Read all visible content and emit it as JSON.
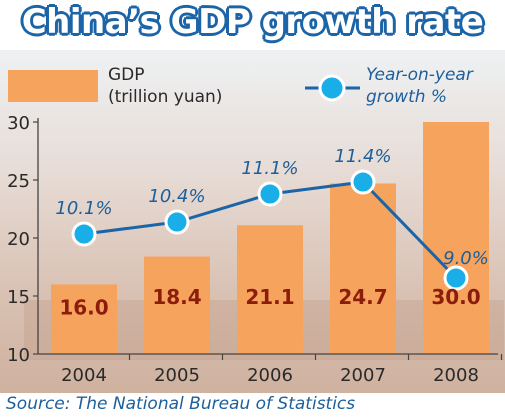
{
  "title": "China’s GDP growth rate",
  "source": "Source: The National Bureau of Statistics",
  "colors": {
    "bar": "#f6a35e",
    "bar_label": "#8c1c0c",
    "line": "#1c64a8",
    "marker": "#1aaee8",
    "title_outline": "#1c64a8",
    "pct_label": "#1d5f9a"
  },
  "legend": {
    "bar_label_line1": "GDP",
    "bar_label_line2": "(trillion yuan)",
    "line_label_line1": "Year-on-year",
    "line_label_line2": "growth %"
  },
  "chart_data": {
    "type": "bar",
    "title": "China’s GDP growth rate",
    "categories": [
      "2004",
      "2005",
      "2006",
      "2007",
      "2008"
    ],
    "series": [
      {
        "name": "GDP (trillion yuan)",
        "type": "bar",
        "values": [
          16.0,
          18.4,
          21.1,
          24.7,
          30.0
        ],
        "labels": [
          "16.0",
          "18.4",
          "21.1",
          "24.7",
          "30.0"
        ]
      },
      {
        "name": "Year-on-year growth %",
        "type": "line",
        "values": [
          10.1,
          10.4,
          11.1,
          11.4,
          9.0
        ],
        "labels": [
          "10.1%",
          "10.4%",
          "11.1%",
          "11.4%",
          "9.0%"
        ]
      }
    ],
    "ylim": [
      10,
      30
    ],
    "yticks": [
      "10",
      "15",
      "20",
      "25",
      "30"
    ],
    "legend_position": "top",
    "grid": false
  }
}
